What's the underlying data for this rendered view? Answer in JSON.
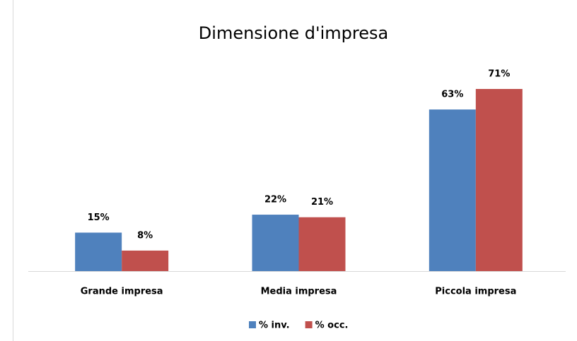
{
  "chart_data": {
    "type": "bar",
    "title": "Dimensione d'impresa",
    "categories": [
      "Grande impresa",
      "Media impresa",
      "Piccola impresa"
    ],
    "series": [
      {
        "name": "% inv.",
        "color": "#4f81bd",
        "values": [
          15,
          22,
          63
        ],
        "value_labels": [
          "15%",
          "22%",
          "63%"
        ]
      },
      {
        "name": "% occ.",
        "color": "#c0504d",
        "values": [
          8,
          21,
          71
        ],
        "value_labels": [
          "8%",
          "21%",
          "71%"
        ]
      }
    ],
    "legend": "bottom"
  }
}
